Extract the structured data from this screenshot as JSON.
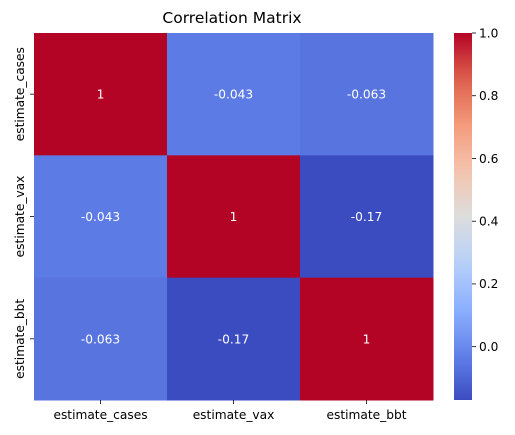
{
  "chart_data": {
    "type": "heatmap",
    "title": "Correlation Matrix",
    "xlabel": "",
    "ylabel": "",
    "x_categories": [
      "estimate_cases",
      "estimate_vax",
      "estimate_bbt"
    ],
    "y_categories": [
      "estimate_cases",
      "estimate_vax",
      "estimate_bbt"
    ],
    "values": [
      [
        1,
        -0.043,
        -0.063
      ],
      [
        -0.043,
        1,
        -0.17
      ],
      [
        -0.063,
        -0.17,
        1
      ]
    ],
    "annotations": [
      [
        "1",
        "-0.043",
        "-0.063"
      ],
      [
        "-0.043",
        "1",
        "-0.17"
      ],
      [
        "-0.063",
        "-0.17",
        "1"
      ]
    ],
    "colormap": "coolwarm",
    "colorbar": {
      "vmin": -0.17,
      "vmax": 1.0,
      "ticks": [
        0.0,
        0.2,
        0.4,
        0.6,
        0.8,
        1.0
      ],
      "tick_labels": [
        "0.0",
        "0.2",
        "0.4",
        "0.6",
        "0.8",
        "1.0"
      ]
    }
  }
}
